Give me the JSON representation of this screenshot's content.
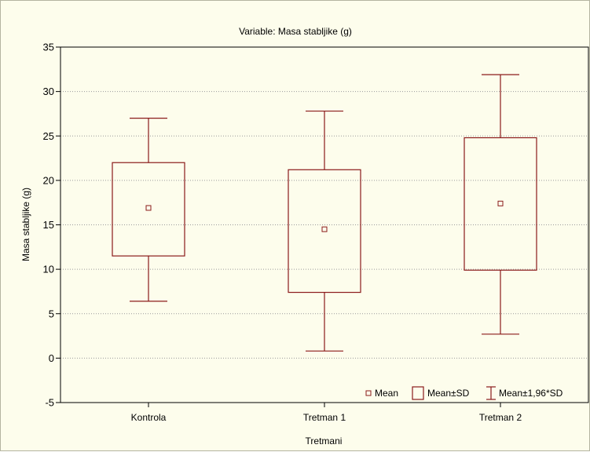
{
  "chart_data": {
    "type": "box",
    "title": "Variable: Masa stabljike (g)",
    "xlabel": "Tretmani",
    "ylabel": "Masa stabljike (g)",
    "ylim": [
      -5,
      35
    ],
    "yticks": [
      -5,
      0,
      5,
      10,
      15,
      20,
      25,
      30,
      35
    ],
    "grid": true,
    "categories": [
      "Kontrola",
      "Tretman 1",
      "Tretman 2"
    ],
    "mean": [
      16.9,
      14.5,
      17.4
    ],
    "mean_minus_sd": [
      11.5,
      7.4,
      9.9
    ],
    "mean_plus_sd": [
      22.0,
      21.2,
      24.8
    ],
    "whisker_low_1_96sd": [
      6.4,
      0.8,
      2.7
    ],
    "whisker_high_1_96sd": [
      27.0,
      27.8,
      31.9
    ],
    "legend": {
      "position": "bottom-right",
      "items": [
        "Mean",
        "Mean±SD",
        "Mean±1,96*SD"
      ]
    },
    "colors": {
      "series": "#8b1a1a",
      "background": "#fdfdec",
      "grid": "#9a9a9a"
    }
  }
}
